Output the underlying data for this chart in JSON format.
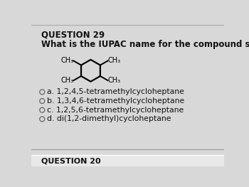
{
  "title": "QUESTION 29",
  "question": "What is the IUPAC name for the compound shown?",
  "choices": [
    "a. 1,2,4,5-tetramethylcycloheptane",
    "b. 1,3,4,6-tetramethylcycloheptane",
    "c. 1,2,5,6-tetramethylcycloheptane",
    "d. di(1,2-dimethyl)cycloheptane"
  ],
  "bg_color": "#d8d8d8",
  "card_color": "#f0f0f0",
  "text_color": "#111111",
  "circle_color": "#666666",
  "bottom_title": "QUESTION 20",
  "bottom_bg": "#e8e8e8"
}
